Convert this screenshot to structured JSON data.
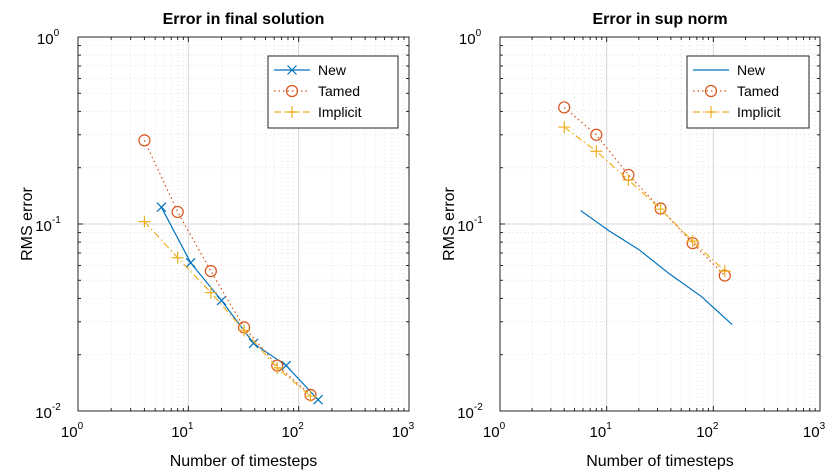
{
  "chart_data": [
    {
      "type": "line",
      "title": "Error in final solution",
      "xlabel": "Number of timesteps",
      "ylabel": "RMS error",
      "xscale": "log",
      "yscale": "log",
      "xlim": [
        1,
        1000
      ],
      "ylim": [
        0.01,
        1
      ],
      "grid": true,
      "legend_position": "top-right",
      "x_ticks": [
        {
          "base": "10",
          "exp": "0"
        },
        {
          "base": "10",
          "exp": "1"
        },
        {
          "base": "10",
          "exp": "2"
        },
        {
          "base": "10",
          "exp": "3"
        }
      ],
      "y_ticks": [
        {
          "base": "10",
          "exp": "-2"
        },
        {
          "base": "10",
          "exp": "-1"
        },
        {
          "base": "10",
          "exp": "0"
        }
      ],
      "series": [
        {
          "name": "New",
          "color": "#0072BD",
          "marker": "x",
          "line": "solid",
          "x": [
            5.7,
            10.5,
            20,
            39,
            77,
            150
          ],
          "y": [
            0.123,
            0.062,
            0.039,
            0.023,
            0.0175,
            0.0115
          ]
        },
        {
          "name": "Tamed",
          "color": "#D95319",
          "marker": "o",
          "line": "dotted",
          "x": [
            4,
            8,
            16,
            32,
            64,
            128
          ],
          "y": [
            0.28,
            0.116,
            0.056,
            0.028,
            0.0175,
            0.0122
          ]
        },
        {
          "name": "Implicit",
          "color": "#EDB120",
          "marker": "+",
          "line": "dashdot",
          "x": [
            4,
            8,
            16,
            32,
            64,
            128
          ],
          "y": [
            0.103,
            0.066,
            0.043,
            0.027,
            0.017,
            0.012
          ]
        }
      ]
    },
    {
      "type": "line",
      "title": "Error in sup norm",
      "xlabel": "Number of timesteps",
      "ylabel": "RMS error",
      "xscale": "log",
      "yscale": "log",
      "xlim": [
        1,
        1000
      ],
      "ylim": [
        0.01,
        1
      ],
      "grid": true,
      "legend_position": "top-right",
      "x_ticks": [
        {
          "base": "10",
          "exp": "0"
        },
        {
          "base": "10",
          "exp": "1"
        },
        {
          "base": "10",
          "exp": "2"
        },
        {
          "base": "10",
          "exp": "3"
        }
      ],
      "y_ticks": [
        {
          "base": "10",
          "exp": "-2"
        },
        {
          "base": "10",
          "exp": "-1"
        },
        {
          "base": "10",
          "exp": "0"
        }
      ],
      "series": [
        {
          "name": "New",
          "color": "#0072BD",
          "marker": "none",
          "line": "solid",
          "x": [
            5.7,
            10.5,
            20,
            39,
            77,
            150
          ],
          "y": [
            0.118,
            0.092,
            0.073,
            0.054,
            0.041,
            0.029
          ]
        },
        {
          "name": "Tamed",
          "color": "#D95319",
          "marker": "o",
          "line": "dotted",
          "x": [
            4,
            8,
            16,
            32,
            64,
            128
          ],
          "y": [
            0.42,
            0.3,
            0.183,
            0.121,
            0.079,
            0.053
          ]
        },
        {
          "name": "Implicit",
          "color": "#EDB120",
          "marker": "+",
          "line": "dashdot",
          "x": [
            4,
            8,
            16,
            32,
            64,
            128
          ],
          "y": [
            0.33,
            0.245,
            0.172,
            0.12,
            0.081,
            0.056
          ]
        }
      ]
    }
  ]
}
